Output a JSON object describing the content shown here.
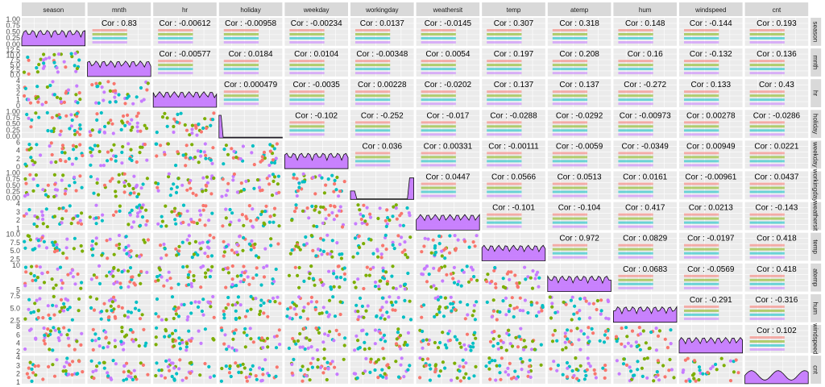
{
  "chart_data": {
    "type": "scatter-matrix",
    "variables": [
      "season",
      "mnth",
      "hr",
      "holiday",
      "weekday",
      "workingday",
      "weathersit",
      "temp",
      "atemp",
      "hum",
      "windspeed",
      "cnt"
    ],
    "group_colors": {
      "1": "#F8766D",
      "2": "#7CAE00",
      "3": "#00BFC4",
      "4": "#C77CFF"
    },
    "density_fill": "#C77CFF",
    "x_ticks": [
      [
        "1",
        "2",
        "3",
        "4"
      ],
      [
        "2.5",
        "5.0",
        "7.5",
        "10.0",
        "12.5"
      ],
      [
        "0",
        "5",
        "10",
        "15",
        "20"
      ],
      [
        "0.00",
        "0.25",
        "0.50",
        "0.75",
        "1.00"
      ],
      [
        "0",
        "2",
        "4",
        "6"
      ],
      [
        "0.00",
        "0.25",
        "0.50",
        "0.75",
        "1.00"
      ],
      [
        "1",
        "2",
        "3",
        "4"
      ],
      [
        "2.5",
        "5.0",
        "7.5",
        "10.0"
      ],
      [
        "5",
        "10"
      ],
      [
        "2.5",
        "5.0",
        "7.5"
      ],
      [
        "2",
        "4",
        "6",
        "8"
      ],
      [
        "1",
        "2",
        "3",
        "4"
      ]
    ],
    "y_ticks": [
      [
        "0.00",
        "0.25",
        "0.50",
        "0.75",
        "1.00"
      ],
      [
        "0.0",
        "2.5",
        "5.0",
        "7.5",
        "10.0",
        "12.5"
      ],
      [
        "0",
        "1",
        "2",
        "3",
        "4"
      ],
      [
        "0.00",
        "0.25",
        "0.50",
        "0.75",
        "1.00"
      ],
      [
        "0",
        "2",
        "4",
        "6"
      ],
      [
        "0.00",
        "0.25",
        "0.50",
        "0.75",
        "1.00"
      ],
      [
        "1",
        "2",
        "3",
        "4"
      ],
      [
        "2.5",
        "5.0",
        "7.5",
        "10.0"
      ],
      [
        "5",
        "10"
      ],
      [
        "2.5",
        "5.0",
        "7.5"
      ],
      [
        "2",
        "4",
        "6",
        "8"
      ],
      [
        "1",
        "2",
        "3",
        "4"
      ]
    ],
    "correlations": {
      "season-mnth": "Cor : 0.83",
      "season-hr": "Cor : -0.00612",
      "season-holiday": "Cor : -0.00958",
      "season-weekday": "Cor : -0.00234",
      "season-workingday": "Cor : 0.0137",
      "season-weathersit": "Cor : -0.0145",
      "season-temp": "Cor : 0.307",
      "season-atemp": "Cor : 0.318",
      "season-hum": "Cor : 0.148",
      "season-windspeed": "Cor : -0.144",
      "season-cnt": "Cor : 0.193",
      "mnth-hr": "Cor : -0.00577",
      "mnth-holiday": "Cor : 0.0184",
      "mnth-weekday": "Cor : 0.0104",
      "mnth-workingday": "Cor : -0.00348",
      "mnth-weathersit": "Cor : 0.0054",
      "mnth-temp": "Cor : 0.197",
      "mnth-atemp": "Cor : 0.208",
      "mnth-hum": "Cor : 0.16",
      "mnth-windspeed": "Cor : -0.132",
      "mnth-cnt": "Cor : 0.136",
      "hr-holiday": "Cor : 0.000479",
      "hr-weekday": "Cor : -0.0035",
      "hr-workingday": "Cor : 0.00228",
      "hr-weathersit": "Cor : -0.0202",
      "hr-temp": "Cor : 0.137",
      "hr-atemp": "Cor : 0.137",
      "hr-hum": "Cor : -0.272",
      "hr-windspeed": "Cor : 0.133",
      "hr-cnt": "Cor : 0.43",
      "holiday-weekday": "Cor : -0.102",
      "holiday-workingday": "Cor : -0.252",
      "holiday-weathersit": "Cor : -0.017",
      "holiday-temp": "Cor : -0.0288",
      "holiday-atemp": "Cor : -0.0292",
      "holiday-hum": "Cor : -0.00973",
      "holiday-windspeed": "Cor : 0.00278",
      "holiday-cnt": "Cor : -0.0286",
      "weekday-workingday": "Cor : 0.036",
      "weekday-weathersit": "Cor : 0.00331",
      "weekday-temp": "Cor : -0.00111",
      "weekday-atemp": "Cor : -0.0059",
      "weekday-hum": "Cor : -0.0349",
      "weekday-windspeed": "Cor : 0.00949",
      "weekday-cnt": "Cor : 0.0221",
      "workingday-weathersit": "Cor : 0.0447",
      "workingday-temp": "Cor : 0.0566",
      "workingday-atemp": "Cor : 0.0513",
      "workingday-hum": "Cor : 0.0161",
      "workingday-windspeed": "Cor : -0.00961",
      "workingday-cnt": "Cor : 0.0437",
      "weathersit-temp": "Cor : -0.101",
      "weathersit-atemp": "Cor : -0.104",
      "weathersit-hum": "Cor : 0.417",
      "weathersit-windspeed": "Cor : 0.0213",
      "weathersit-cnt": "Cor : -0.143",
      "temp-atemp": "Cor : 0.972",
      "temp-hum": "Cor : 0.0829",
      "temp-windspeed": "Cor : -0.0197",
      "temp-cnt": "Cor : 0.418",
      "atemp-hum": "Cor : 0.0683",
      "atemp-windspeed": "Cor : -0.0569",
      "atemp-cnt": "Cor : 0.418",
      "hum-windspeed": "Cor : -0.291",
      "hum-cnt": "Cor : -0.316",
      "windspeed-cnt": "Cor : 0.102"
    }
  }
}
